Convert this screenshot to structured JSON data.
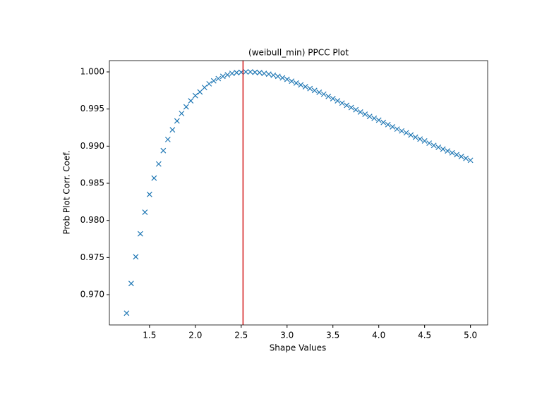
{
  "chart_data": {
    "type": "scatter",
    "title": "(weibull_min) PPCC Plot",
    "x_label": "Shape Values",
    "y_label": "Prob Plot Corr. Coef.",
    "marker": "x",
    "color": "#1f77b4",
    "x": [
      1.25,
      1.3,
      1.35,
      1.4,
      1.45,
      1.5,
      1.55,
      1.6,
      1.65,
      1.7,
      1.75,
      1.8,
      1.85,
      1.9,
      1.95,
      2.0,
      2.05,
      2.1,
      2.15,
      2.2,
      2.25,
      2.3,
      2.35,
      2.4,
      2.45,
      2.5,
      2.55,
      2.6,
      2.65,
      2.7,
      2.75,
      2.8,
      2.85,
      2.9,
      2.95,
      3.0,
      3.05,
      3.1,
      3.15,
      3.2,
      3.25,
      3.3,
      3.35,
      3.4,
      3.45,
      3.5,
      3.55,
      3.6,
      3.65,
      3.7,
      3.75,
      3.8,
      3.85,
      3.9,
      3.95,
      4.0,
      4.05,
      4.1,
      4.15,
      4.2,
      4.25,
      4.3,
      4.35,
      4.4,
      4.45,
      4.5,
      4.55,
      4.6,
      4.65,
      4.7,
      4.75,
      4.8,
      4.85,
      4.9,
      4.95,
      5.0
    ],
    "values": [
      0.9675,
      0.9715,
      0.9751,
      0.9782,
      0.9811,
      0.9835,
      0.9857,
      0.9876,
      0.9894,
      0.9909,
      0.9922,
      0.9934,
      0.9944,
      0.9953,
      0.9961,
      0.9968,
      0.9973,
      0.9979,
      0.9984,
      0.9988,
      0.9991,
      0.9994,
      0.9996,
      0.9998,
      0.9999,
      0.99995,
      1.0,
      1.0,
      0.99995,
      0.9999,
      0.9998,
      0.9997,
      0.99955,
      0.9994,
      0.9992,
      0.999,
      0.99875,
      0.9985,
      0.99825,
      0.998,
      0.99775,
      0.9975,
      0.99725,
      0.997,
      0.9967,
      0.9964,
      0.9961,
      0.9958,
      0.9955,
      0.9952,
      0.9949,
      0.9946,
      0.9943,
      0.994,
      0.99375,
      0.9935,
      0.9932,
      0.9929,
      0.9926,
      0.9923,
      0.99205,
      0.9918,
      0.9915,
      0.9912,
      0.99095,
      0.9907,
      0.9904,
      0.9901,
      0.98985,
      0.9896,
      0.98935,
      0.9891,
      0.98885,
      0.9886,
      0.98835,
      0.9881
    ],
    "vline": 2.52,
    "vline_color": "#d62728",
    "xlim": [
      1.0625,
      5.1875
    ],
    "ylim": [
      0.96592,
      1.00152
    ],
    "xticks": [
      1.5,
      {
        "value": 2,
        "label": "2.0"
      },
      2.5,
      {
        "value": 3,
        "label": "3.0"
      },
      3.5,
      {
        "value": 4,
        "label": "4.0"
      },
      4.5,
      {
        "value": 5,
        "label": "5.0"
      }
    ],
    "yticks": [
      {
        "value": 0.97,
        "label": "0.970"
      },
      {
        "value": 0.975,
        "label": "0.975"
      },
      {
        "value": 0.98,
        "label": "0.980"
      },
      {
        "value": 0.985,
        "label": "0.985"
      },
      {
        "value": 0.99,
        "label": "0.990"
      },
      {
        "value": 0.995,
        "label": "0.995"
      },
      {
        "value": 1,
        "label": "1.000"
      }
    ]
  }
}
